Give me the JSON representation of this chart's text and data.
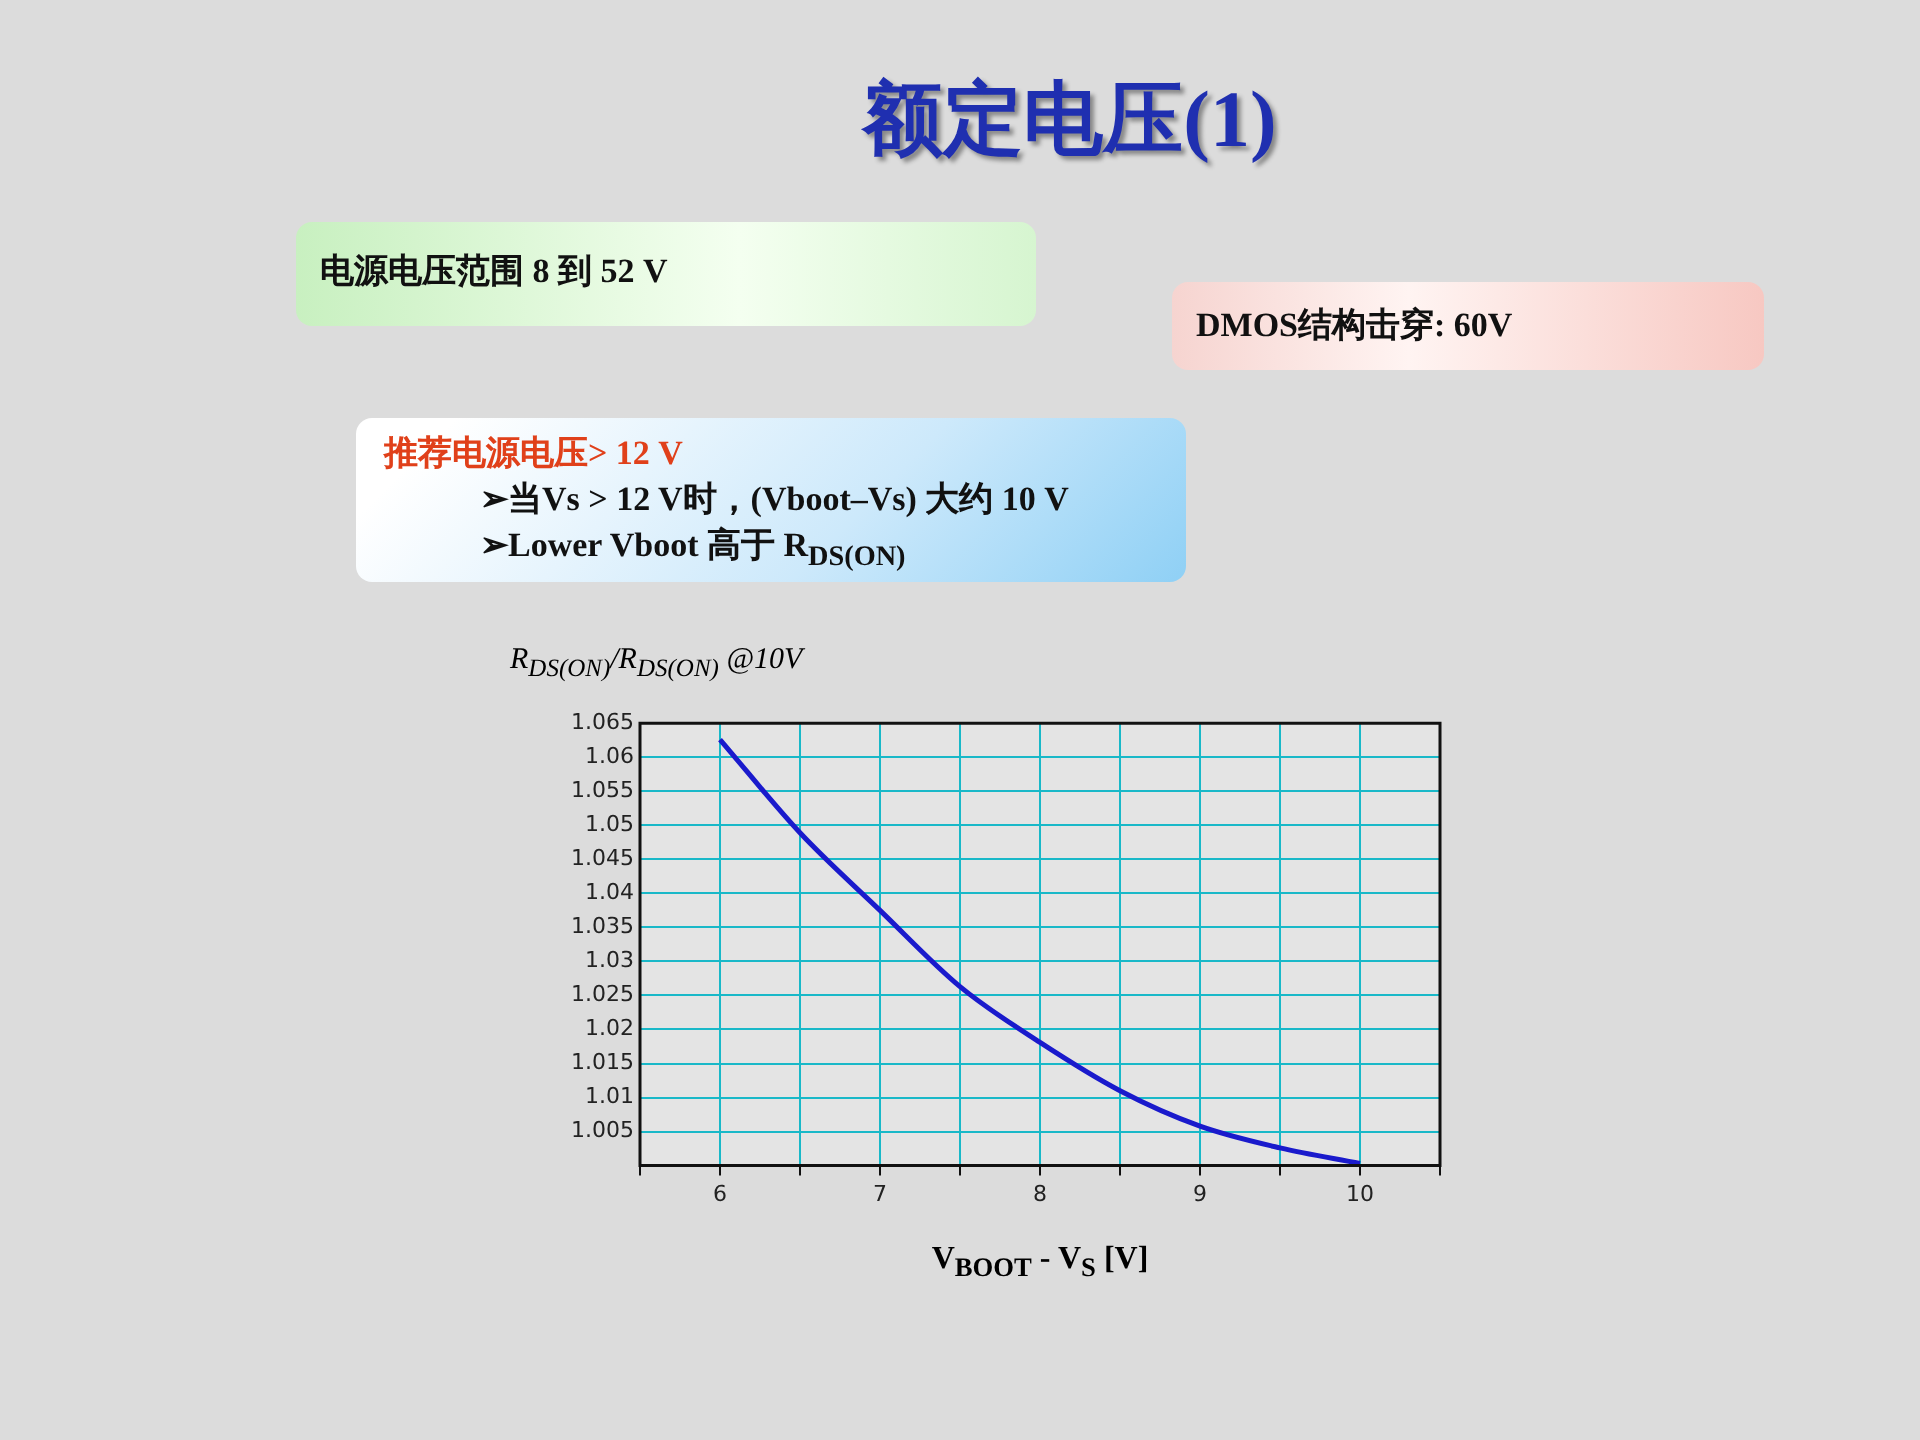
{
  "chart_data": {
    "type": "line",
    "title": "额定电压(1)",
    "xlabel": "V$_{BOOT}$ - V$_{S}$ [V]",
    "ylabel": "R$_{DS(ON)}$/R$_{DS(ON)}$ @10V",
    "annotations": [
      "电源电压范围 8 到 52 V",
      "DMOS结构击穿: 60V",
      "推荐电源电压> 12 V",
      "➢当Vs > 12 V时，(Vboot–Vs) 大约 10 V",
      "➢Lower Vboot 高于 R$_{DS(ON)}$"
    ],
    "x": [
      6,
      6.5,
      7,
      7.5,
      8,
      8.5,
      9,
      9.5,
      10
    ],
    "series": [
      {
        "color": "#1a1acc",
        "values": [
          1.0626,
          1.0489,
          1.0375,
          1.0263,
          1.0181,
          1.011,
          1.0058,
          1.0026,
          1.0003
        ]
      }
    ],
    "xlim": [
      5.5,
      10.5
    ],
    "xticks": [
      {
        "value": 5.5,
        "label": null
      },
      6,
      {
        "value": 6.5,
        "label": null
      },
      7,
      {
        "value": 7.5,
        "label": null
      },
      8,
      {
        "value": 8.5,
        "label": null
      },
      9,
      {
        "value": 9.5,
        "label": null
      },
      10,
      {
        "value": 10.5,
        "label": null
      }
    ],
    "ylim": [
      1.0,
      1.065
    ],
    "yticks": [
      {
        "value": 1.0,
        "label": null
      },
      1.005,
      1.01,
      1.015,
      1.02,
      1.025,
      1.03,
      1.035,
      1.04,
      1.045,
      1.05,
      1.055,
      1.06,
      1.065
    ],
    "grid": true,
    "marker": "none",
    "line_style": "solid"
  }
}
